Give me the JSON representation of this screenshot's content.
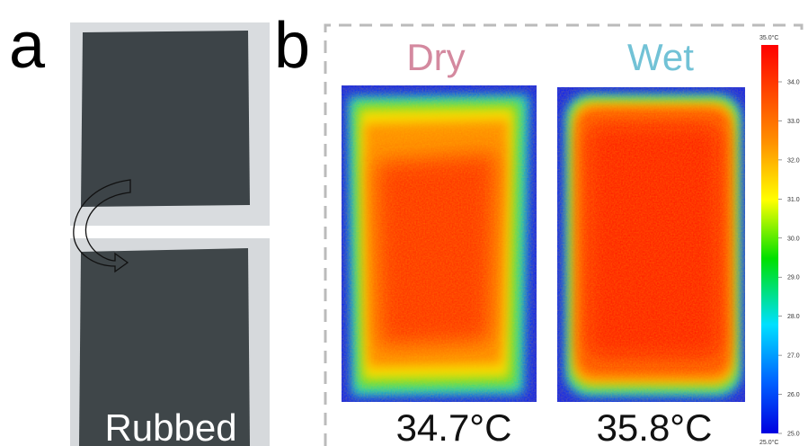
{
  "panel_a": {
    "label": "a",
    "caption": "Rubbed"
  },
  "panel_b": {
    "label": "b",
    "images": [
      {
        "title": "Dry",
        "temperature": "34.7°C"
      },
      {
        "title": "Wet",
        "temperature": "35.8°C"
      }
    ],
    "colorbar": {
      "max_label": "35.0°C",
      "ticks": [
        "34.0",
        "33.0",
        "32.0",
        "31.0",
        "30.0",
        "29.0",
        "28.0",
        "27.0",
        "26.0",
        "25.0"
      ],
      "min_label": "25.0°C"
    }
  }
}
